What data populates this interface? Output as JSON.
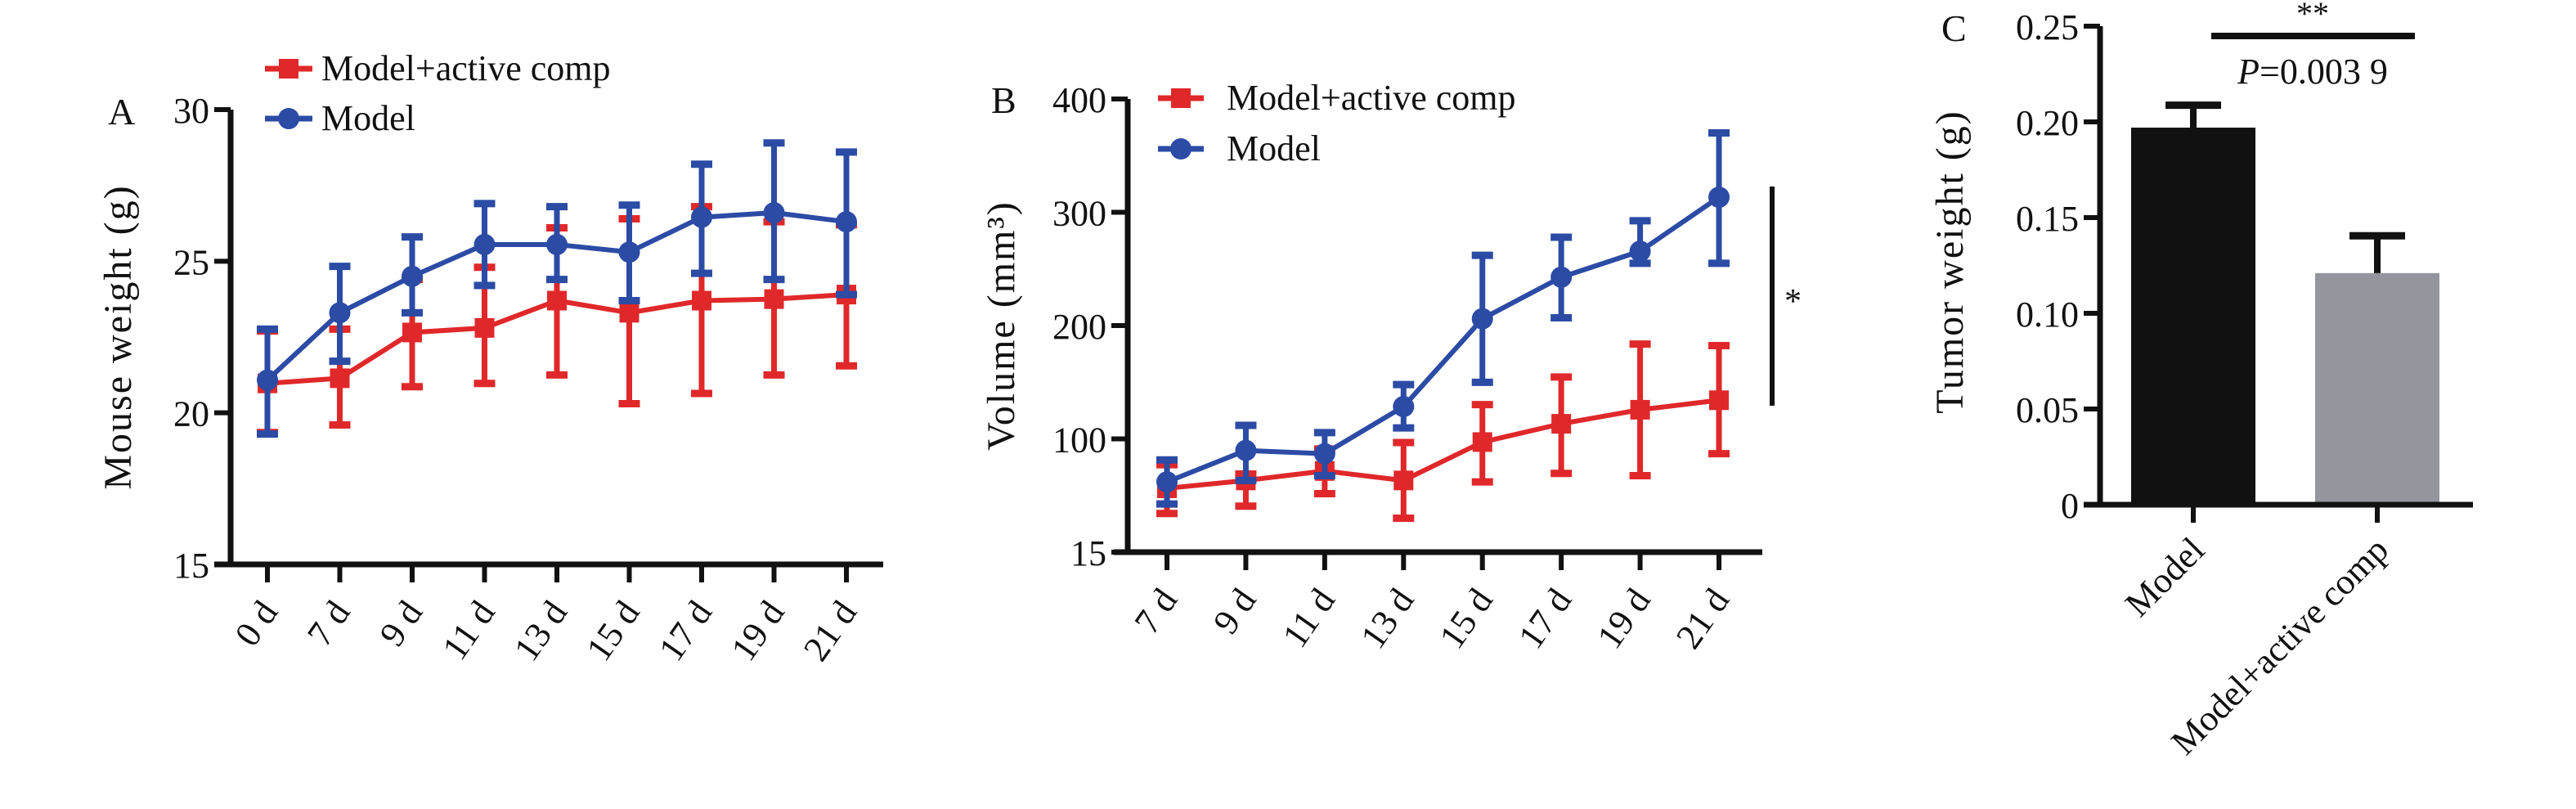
{
  "chart_data": [
    {
      "panel": "A",
      "type": "line",
      "title": "",
      "xlabel": "",
      "ylabel": "Mouse weight (g)",
      "ylim": [
        15,
        30
      ],
      "yticks": [
        "15",
        "20",
        "25",
        "30"
      ],
      "ytick_values": [
        15,
        20,
        25,
        30
      ],
      "categories": [
        "0 d",
        "7 d",
        "9 d",
        "11 d",
        "13 d",
        "15 d",
        "17 d",
        "19 d",
        "21 d"
      ],
      "grid": false,
      "legend": "top-left",
      "series": [
        {
          "name": "Model+active comp",
          "color": "#e0282a",
          "marker": "square",
          "values": [
            20.97,
            21.14,
            22.65,
            22.8,
            23.7,
            23.3,
            23.7,
            23.75,
            23.9
          ],
          "err_upper": [
            22.7,
            22.76,
            24.4,
            24.8,
            26.1,
            26.4,
            26.8,
            26.3,
            26.2
          ],
          "err_lower": [
            19.35,
            19.6,
            20.86,
            20.97,
            21.25,
            20.3,
            20.64,
            21.25,
            21.55
          ]
        },
        {
          "name": "Model",
          "color": "#2b4ba5",
          "marker": "circle",
          "values": [
            21.08,
            23.3,
            24.5,
            25.55,
            25.55,
            25.3,
            26.45,
            26.6,
            26.3
          ],
          "err_upper": [
            22.76,
            24.83,
            25.8,
            26.9,
            26.8,
            26.85,
            28.2,
            28.9,
            28.6
          ],
          "err_lower": [
            19.3,
            21.7,
            23.3,
            24.2,
            24.4,
            23.7,
            24.6,
            24.4,
            23.9
          ]
        }
      ]
    },
    {
      "panel": "B",
      "type": "line",
      "title": "",
      "xlabel": "",
      "ylabel": "Volume (mm³)",
      "ylim": [
        15,
        400
      ],
      "yticks": [
        "15",
        "100",
        "200",
        "300",
        "400"
      ],
      "ytick_values": [
        15,
        100,
        200,
        300,
        400
      ],
      "categories": [
        "7 d",
        "9 d",
        "11 d",
        "13 d",
        "15 d",
        "17 d",
        "19 d",
        "21 d"
      ],
      "grid": false,
      "legend": "top-left",
      "annotation": "*",
      "series": [
        {
          "name": "Model+active comp",
          "color": "#e0282a",
          "marker": "square",
          "values": [
            62.9,
            68.8,
            75.9,
            68.8,
            97.6,
            113.3,
            125.7,
            134.1
          ],
          "err_upper": [
            80.6,
            73.6,
            92.4,
            97.2,
            130.2,
            154.6,
            183.7,
            182.3
          ],
          "err_lower": [
            44,
            49.5,
            58.9,
            40.5,
            67.7,
            74.1,
            72.4,
            88.9
          ]
        },
        {
          "name": "Model",
          "color": "#2b4ba5",
          "marker": "circle",
          "values": [
            67.7,
            91.3,
            88.9,
            128.5,
            206,
            242.7,
            265.6,
            313.3
          ],
          "err_upper": [
            84.2,
            111.9,
            105.5,
            147.9,
            262,
            278,
            292.5,
            370
          ],
          "err_lower": [
            51.1,
            68.8,
            72.4,
            109.7,
            149.9,
            206.9,
            255,
            255
          ]
        }
      ]
    },
    {
      "panel": "C",
      "type": "bar",
      "title": "",
      "xlabel": "",
      "ylabel": "Tumor weight (g)",
      "ylim": [
        0,
        0.25
      ],
      "yticks": [
        "0",
        "0.05",
        "0.10",
        "0.15",
        "0.20",
        "0.25"
      ],
      "ytick_values": [
        0,
        0.05,
        0.1,
        0.15,
        0.2,
        0.25
      ],
      "categories": [
        "Model",
        "Model+active comp"
      ],
      "values": [
        0.197,
        0.121
      ],
      "err_upper": [
        0.2087,
        0.1405
      ],
      "colors": [
        "#111111",
        "#95969d"
      ],
      "grid": false,
      "annotation_stars": "**",
      "annotation_p_prefix": "P",
      "annotation_p_value": "=0.003 9"
    }
  ]
}
